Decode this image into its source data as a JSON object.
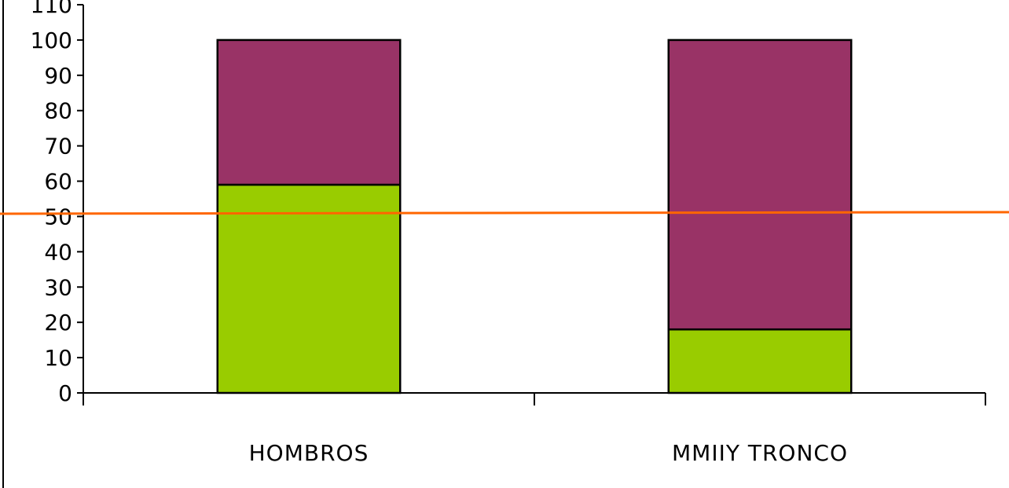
{
  "chart_data": {
    "type": "bar",
    "stacked": true,
    "categories": [
      "HOMBROS",
      "MMIIY TRONCO"
    ],
    "series": [
      {
        "color": "#99CC00",
        "values": [
          59,
          18
        ]
      },
      {
        "color": "#993366",
        "values": [
          41,
          82
        ]
      }
    ],
    "reference_line": {
      "value": 51,
      "color": "#FF6600"
    },
    "yticks": [
      0,
      10,
      20,
      30,
      40,
      50,
      60,
      70,
      80,
      90,
      100,
      110
    ],
    "ylim": [
      0,
      110
    ],
    "title": "",
    "xlabel": "",
    "ylabel": "",
    "grid": false,
    "legend": "none"
  }
}
